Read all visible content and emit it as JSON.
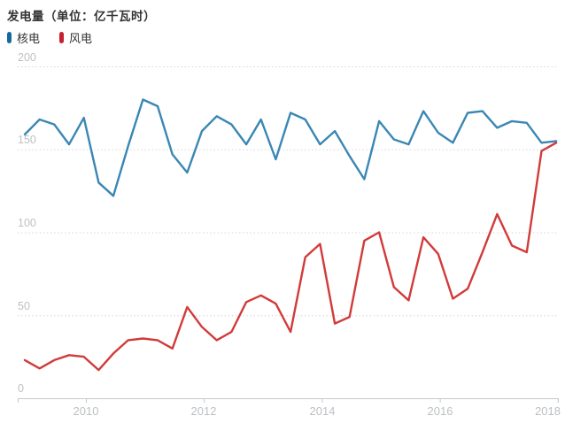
{
  "title": "发电量（单位：亿千瓦时）",
  "legend": {
    "items": [
      {
        "label": "核电",
        "marker_color": "#16689f"
      },
      {
        "label": "风电",
        "marker_color": "#c5202e"
      }
    ]
  },
  "axes": {
    "ytick_labels": [
      "200",
      "150",
      "100",
      "50",
      "0"
    ],
    "xtick_labels": [
      "2010",
      "2012",
      "2014",
      "2016",
      "2018"
    ],
    "tick_label_color": "#bcc0c4",
    "gridline_color": "#d6d6d6",
    "baseline_color": "#c8c8c8"
  },
  "chart_data": {
    "type": "line",
    "title": "发电量（单位：亿千瓦时）",
    "unit": "亿千瓦时",
    "x_frequency": "quarterly",
    "categories": [
      "2009Q1",
      "2009Q2",
      "2009Q3",
      "2009Q4",
      "2010Q1",
      "2010Q2",
      "2010Q3",
      "2010Q4",
      "2011Q1",
      "2011Q2",
      "2011Q3",
      "2011Q4",
      "2012Q1",
      "2012Q2",
      "2012Q3",
      "2012Q4",
      "2013Q1",
      "2013Q2",
      "2013Q3",
      "2013Q4",
      "2014Q1",
      "2014Q2",
      "2014Q3",
      "2014Q4",
      "2015Q1",
      "2015Q2",
      "2015Q3",
      "2015Q4",
      "2016Q1",
      "2016Q2",
      "2016Q3",
      "2016Q4",
      "2017Q1",
      "2017Q2",
      "2017Q3",
      "2017Q4",
      "2018Q1"
    ],
    "series": [
      {
        "name": "核电",
        "color": "#3a87b4",
        "values": [
          159,
          168,
          165,
          153,
          169,
          130,
          122,
          152,
          180,
          176,
          147,
          136,
          161,
          170,
          165,
          153,
          168,
          144,
          172,
          168,
          153,
          161,
          146,
          132,
          167,
          156,
          153,
          173,
          160,
          154,
          172,
          173,
          163,
          167,
          166,
          154,
          155
        ]
      },
      {
        "name": "风电",
        "color": "#d13b3a",
        "values": [
          23,
          18,
          23,
          26,
          25,
          17,
          27,
          35,
          36,
          35,
          30,
          55,
          43,
          35,
          40,
          58,
          62,
          57,
          40,
          85,
          93,
          45,
          49,
          95,
          100,
          67,
          59,
          97,
          87,
          60,
          66,
          88,
          111,
          92,
          88,
          149,
          154
        ]
      }
    ],
    "ylim": [
      0,
      200
    ],
    "yticks": [
      0,
      50,
      100,
      150,
      200
    ],
    "xticks": [
      2010,
      2012,
      2014,
      2016,
      2018
    ],
    "grid": "horizontal-dotted",
    "legend_position": "top-left"
  }
}
